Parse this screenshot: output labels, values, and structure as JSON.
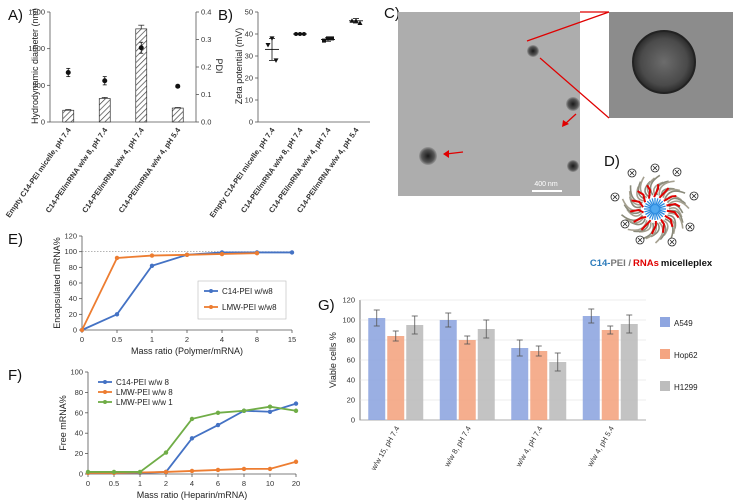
{
  "panels": {
    "A": {
      "label": "A)",
      "ylabel_left": "Hydrodynamic diameter (nm)",
      "ylabel_right": "PDI"
    },
    "B": {
      "label": "B)",
      "ylabel": "Zeta potential (mV)"
    },
    "C": {
      "label": "C)",
      "scalebar": "400 nm"
    },
    "D": {
      "label": "D)",
      "caption_c14": "C14-",
      "caption_pei": "PEI /",
      "caption_rnas": "RNAs",
      "caption_rest": "micelleplex"
    },
    "E": {
      "label": "E)"
    },
    "F": {
      "label": "F)"
    },
    "G": {
      "label": "G)"
    }
  },
  "colors": {
    "c14": "#4472c4",
    "lmw8": "#ed7d31",
    "lmw1": "#70ad47",
    "a549": "#8fa6e0",
    "hop62": "#f4a582",
    "h1299": "#bdbdbd",
    "red": "#e00000"
  },
  "chart_data": [
    {
      "id": "A",
      "type": "bar",
      "categories": [
        "Empty C14-PEI micelle, pH 7.4",
        "C14-PEI/mRNA w/w 8, pH 7.4",
        "C14-PEI/mRNA w/w 4, pH 7.4",
        "C14-PEI/mRNA w/w 4, pH 5.4"
      ],
      "values": [
        160,
        320,
        1270,
        190
      ],
      "errors": [
        10,
        15,
        50,
        8
      ],
      "pdi": [
        0.18,
        0.15,
        0.27,
        0.13
      ],
      "pdi_errors": [
        0.015,
        0.015,
        0.02,
        0.005
      ],
      "ylim": [
        0,
        1500
      ],
      "yticks": [
        0,
        500,
        1000,
        1500
      ],
      "y2lim": [
        0,
        0.4
      ],
      "y2ticks": [
        0.0,
        0.1,
        0.2,
        0.3,
        0.4
      ],
      "ylabel": "Hydrodynamic diameter (nm)",
      "y2label": "PDI"
    },
    {
      "id": "B",
      "type": "scatter",
      "categories": [
        "Empty C14-PEI micelle, pH 7.4",
        "C14-PEI/mRNA w/w 8, pH 7.4",
        "C14-PEI/mRNA w/w 4, pH 7.4",
        "C14-PEI/mRNA w/w 4, pH 5.4"
      ],
      "points": [
        [
          35,
          38,
          28
        ],
        [
          40,
          40,
          40
        ],
        [
          37,
          38,
          38
        ],
        [
          46,
          46,
          45
        ]
      ],
      "means": [
        33,
        40,
        37.5,
        46
      ],
      "sd": [
        5,
        0.3,
        0.8,
        1
      ],
      "markers": [
        "triangle-down",
        "circle",
        "square",
        "triangle-up"
      ],
      "ylim": [
        0,
        50
      ],
      "yticks": [
        0,
        10,
        20,
        30,
        40,
        50
      ],
      "ylabel": "Zeta potential (mV)"
    },
    {
      "id": "E",
      "type": "line",
      "x": [
        "0",
        "0.5",
        "1",
        "2",
        "4",
        "8",
        "15"
      ],
      "series": [
        {
          "name": "C14-PEI w/w8",
          "values": [
            0,
            20,
            82,
            96,
            99,
            99,
            99
          ]
        },
        {
          "name": "LMW-PEI w/w8",
          "values": [
            0,
            92,
            95,
            96,
            97,
            98,
            null
          ]
        }
      ],
      "ylim": [
        0,
        120
      ],
      "yticks": [
        0,
        20,
        40,
        60,
        80,
        100,
        120
      ],
      "xlabel": "Mass ratio (Polymer/mRNA)",
      "ylabel": "Encapsulated mRNA%"
    },
    {
      "id": "F",
      "type": "line",
      "x": [
        "0",
        "0.5",
        "1",
        "2",
        "4",
        "6",
        "8",
        "10",
        "20"
      ],
      "series": [
        {
          "name": "C14-PEI w/w 8",
          "values": [
            1,
            1,
            1,
            2,
            35,
            48,
            62,
            61,
            69
          ]
        },
        {
          "name": "LMW-PEI w/w 8",
          "values": [
            1,
            1,
            1.5,
            2,
            3,
            4,
            5,
            5,
            12
          ]
        },
        {
          "name": "LMW-PEI w/w 1",
          "values": [
            2,
            2,
            2,
            21,
            54,
            60,
            62,
            66,
            62
          ]
        }
      ],
      "ylim": [
        0,
        100
      ],
      "yticks": [
        0,
        20,
        40,
        60,
        80,
        100
      ],
      "xlabel": "Mass ratio (Heparin/mRNA)",
      "ylabel": "Free mRNA%"
    },
    {
      "id": "G",
      "type": "bar",
      "categories": [
        "w/w 15, pH 7.4",
        "w/w 8, pH 7.4",
        "w/w 4, pH 7.4",
        "w/w 4, pH 5.4"
      ],
      "series": [
        {
          "name": "A549",
          "values": [
            102,
            100,
            72,
            104
          ],
          "errors": [
            8,
            7,
            8,
            7
          ]
        },
        {
          "name": "Hop62",
          "values": [
            84,
            80,
            69,
            90
          ],
          "errors": [
            5,
            4,
            5,
            4
          ]
        },
        {
          "name": "H1299",
          "values": [
            95,
            91,
            58,
            96
          ],
          "errors": [
            9,
            9,
            9,
            9
          ]
        }
      ],
      "ylim": [
        0,
        120
      ],
      "yticks": [
        0,
        20,
        40,
        60,
        80,
        100,
        120
      ],
      "ylabel": "Viable cells %"
    }
  ]
}
